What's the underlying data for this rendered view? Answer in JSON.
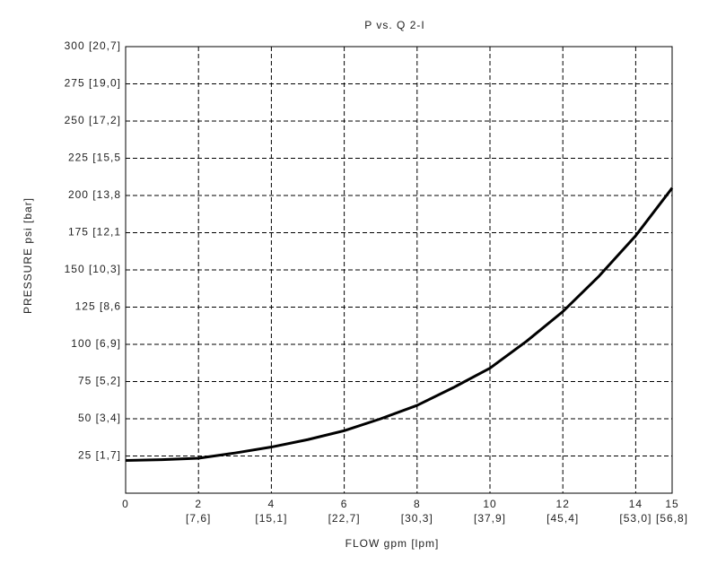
{
  "chart_data": {
    "type": "line",
    "title": "P vs. Q 2-I",
    "x_label": "FLOW gpm [lpm]",
    "y_label": "PRESSURE psi [bar]",
    "x": [
      0,
      1,
      2,
      3,
      4,
      5,
      6,
      7,
      8,
      9,
      10,
      11,
      12,
      13,
      14,
      15
    ],
    "series": [
      {
        "color": "#000000",
        "values": [
          22,
          22.5,
          23.5,
          27,
          31,
          36,
          42,
          50,
          59,
          71,
          84,
          102,
          122,
          146,
          173,
          205
        ]
      }
    ],
    "xlim": [
      0,
      15
    ],
    "ylim": [
      0,
      300
    ],
    "xticks": [
      0,
      {
        "value": 2,
        "label": "2 [7,6]"
      },
      {
        "value": 4,
        "label": "4 [15,1]"
      },
      {
        "value": 6,
        "label": "6 [22,7]"
      },
      {
        "value": 8,
        "label": "8 [30,3]"
      },
      {
        "value": 10,
        "label": "10 [37,9]"
      },
      {
        "value": 12,
        "label": "12 [45,4]"
      },
      {
        "value": 14,
        "label": "14 [53,0]"
      },
      {
        "value": 15,
        "label": "15 [56,8]"
      }
    ],
    "yticks": [
      {
        "value": 25,
        "label": "25 [1,7]"
      },
      {
        "value": 50,
        "label": "50 [3,4]"
      },
      {
        "value": 75,
        "label": "75 [5,2]"
      },
      {
        "value": 100,
        "label": "100 [6,9]"
      },
      {
        "value": 125,
        "label": "125 [8,6"
      },
      {
        "value": 150,
        "label": "150 [10,3]"
      },
      {
        "value": 175,
        "label": "175 [12,1"
      },
      {
        "value": 200,
        "label": "200 [13,8"
      },
      {
        "value": 225,
        "label": "225 [15,5"
      },
      {
        "value": 250,
        "label": "250 [17,2]"
      },
      {
        "value": 275,
        "label": "275 [19,0]"
      },
      {
        "value": 300,
        "label": "300 [20,7]"
      }
    ],
    "grid": true
  }
}
